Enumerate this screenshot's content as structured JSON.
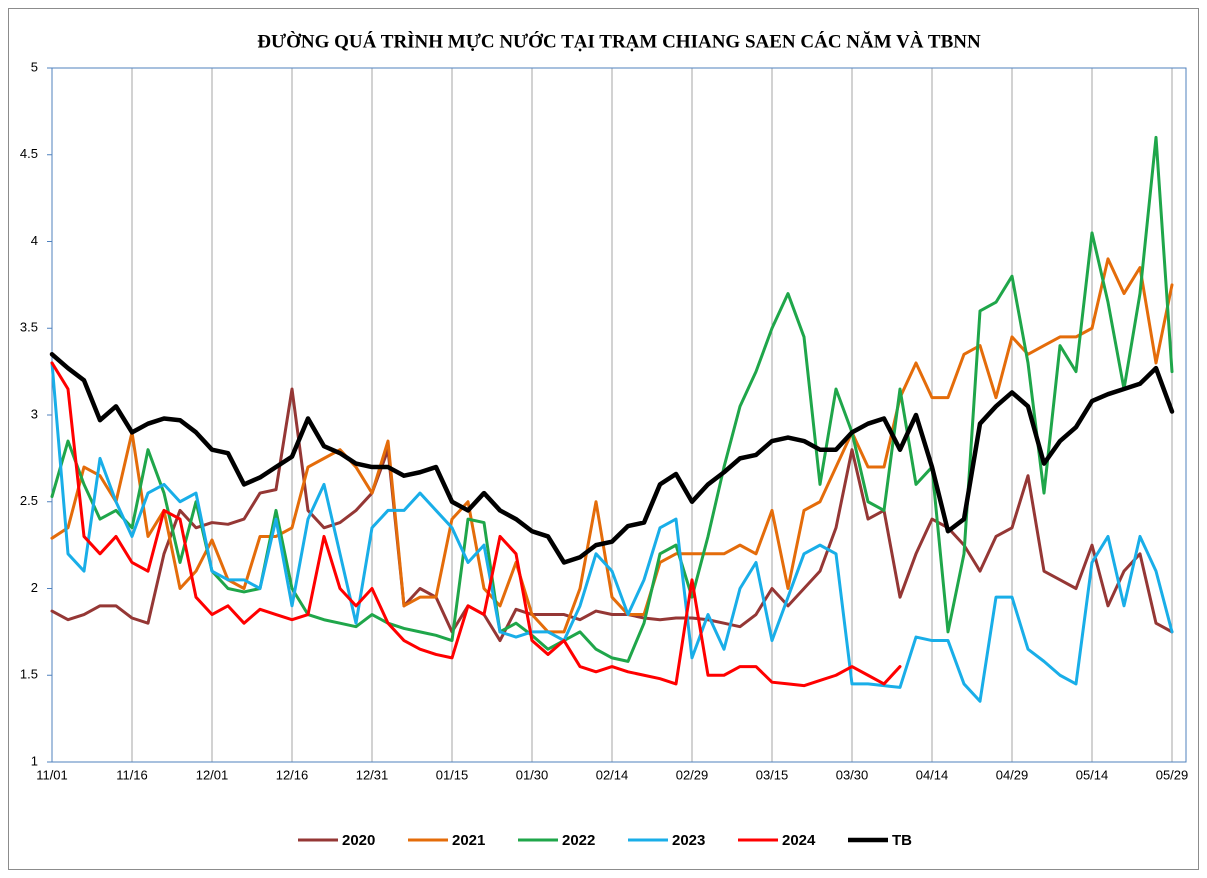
{
  "chart_data": {
    "type": "line",
    "title": "ĐƯỜNG QUÁ TRÌNH MỰC NƯỚC TẠI TRẠM CHIANG SAEN CÁC NĂM VÀ TBNN",
    "categories": [
      "11/01",
      null,
      null,
      null,
      null,
      "11/16",
      null,
      null,
      null,
      null,
      "12/01",
      null,
      null,
      null,
      null,
      "12/16",
      null,
      null,
      null,
      null,
      "12/31",
      null,
      null,
      null,
      null,
      "01/15",
      null,
      null,
      null,
      null,
      "01/30",
      null,
      null,
      null,
      null,
      "02/14",
      null,
      null,
      null,
      null,
      "02/29",
      null,
      null,
      null,
      null,
      "03/15",
      null,
      null,
      null,
      null,
      "03/30",
      null,
      null,
      null,
      null,
      "04/14",
      null,
      null,
      null,
      null,
      "04/29",
      null,
      null,
      null,
      null,
      "05/14",
      null,
      null,
      null,
      null,
      "05/29"
    ],
    "ylim": [
      1,
      5
    ],
    "yticks": [
      1,
      1.5,
      2,
      2.5,
      3,
      3.5,
      4,
      4.5,
      5
    ],
    "grid": true,
    "legend": "bottom",
    "series": [
      {
        "name": "2020",
        "color": "#953735",
        "width": 3,
        "values": [
          1.87,
          1.82,
          1.85,
          1.9,
          1.9,
          1.83,
          1.8,
          2.2,
          2.45,
          2.35,
          2.38,
          2.37,
          2.4,
          2.55,
          2.57,
          3.15,
          2.45,
          2.35,
          2.38,
          2.45,
          2.55,
          2.8,
          1.9,
          2.0,
          1.95,
          1.75,
          1.9,
          1.85,
          1.7,
          1.88,
          1.85,
          1.85,
          1.85,
          1.82,
          1.87,
          1.85,
          1.85,
          1.83,
          1.82,
          1.83,
          1.83,
          1.82,
          1.8,
          1.78,
          1.85,
          2.0,
          1.9,
          2.0,
          2.1,
          2.35,
          2.8,
          2.4,
          2.45,
          1.95,
          2.2,
          2.4,
          2.35,
          2.25,
          2.1,
          2.3,
          2.35,
          2.65,
          2.1,
          2.05,
          2.0,
          2.25,
          1.9,
          2.1,
          2.2,
          1.8,
          1.75
        ]
      },
      {
        "name": "2021",
        "color": "#e46c0a",
        "width": 3,
        "values": [
          2.29,
          2.35,
          2.7,
          2.65,
          2.5,
          2.9,
          2.3,
          2.45,
          2.0,
          2.1,
          2.28,
          2.05,
          2.0,
          2.3,
          2.3,
          2.35,
          2.7,
          2.75,
          2.8,
          2.7,
          2.55,
          2.85,
          1.9,
          1.95,
          1.95,
          2.4,
          2.5,
          2.0,
          1.9,
          2.15,
          1.85,
          1.75,
          1.75,
          2.0,
          2.5,
          1.95,
          1.85,
          1.85,
          2.15,
          2.2,
          2.2,
          2.2,
          2.2,
          2.25,
          2.2,
          2.45,
          2.0,
          2.45,
          2.5,
          2.7,
          2.9,
          2.7,
          2.7,
          3.1,
          3.3,
          3.1,
          3.1,
          3.35,
          3.4,
          3.1,
          3.45,
          3.35,
          3.4,
          3.45,
          3.45,
          3.5,
          3.9,
          3.7,
          3.85,
          3.3,
          3.75
        ]
      },
      {
        "name": "2022",
        "color": "#1fa64a",
        "width": 3,
        "values": [
          2.53,
          2.85,
          2.6,
          2.4,
          2.45,
          2.35,
          2.8,
          2.55,
          2.15,
          2.5,
          2.1,
          2.0,
          1.98,
          2.0,
          2.45,
          2.0,
          1.85,
          1.82,
          1.8,
          1.78,
          1.85,
          1.8,
          1.77,
          1.75,
          1.73,
          1.7,
          2.4,
          2.38,
          1.75,
          1.8,
          1.73,
          1.65,
          1.7,
          1.75,
          1.65,
          1.6,
          1.58,
          1.8,
          2.2,
          2.25,
          1.95,
          2.3,
          2.7,
          3.05,
          3.25,
          3.5,
          3.7,
          3.45,
          2.6,
          3.15,
          2.9,
          2.5,
          2.45,
          3.15,
          2.6,
          2.7,
          1.75,
          2.2,
          3.6,
          3.65,
          3.8,
          3.3,
          2.55,
          3.4,
          3.25,
          4.05,
          3.65,
          3.15,
          3.7,
          4.6,
          3.25
        ]
      },
      {
        "name": "2023",
        "color": "#19aee8",
        "width": 3,
        "values": [
          3.3,
          2.2,
          2.1,
          2.75,
          2.5,
          2.3,
          2.55,
          2.6,
          2.5,
          2.55,
          2.1,
          2.05,
          2.05,
          2.0,
          2.4,
          1.9,
          2.4,
          2.6,
          2.2,
          1.8,
          2.35,
          2.45,
          2.45,
          2.55,
          2.45,
          2.35,
          2.15,
          2.25,
          1.75,
          1.72,
          1.75,
          1.75,
          1.7,
          1.9,
          2.2,
          2.1,
          1.85,
          2.05,
          2.35,
          2.4,
          1.6,
          1.85,
          1.65,
          2.0,
          2.15,
          1.7,
          1.95,
          2.2,
          2.25,
          2.2,
          1.45,
          1.45,
          1.44,
          1.43,
          1.72,
          1.7,
          1.7,
          1.45,
          1.35,
          1.95,
          1.95,
          1.65,
          1.58,
          1.5,
          1.45,
          2.15,
          2.3,
          1.9,
          2.3,
          2.1,
          1.75
        ]
      },
      {
        "name": "2024",
        "color": "#ff0000",
        "width": 3,
        "values": [
          3.3,
          3.15,
          2.3,
          2.2,
          2.3,
          2.15,
          2.1,
          2.45,
          2.4,
          1.95,
          1.85,
          1.9,
          1.8,
          1.88,
          1.85,
          1.82,
          1.85,
          2.3,
          2.0,
          1.9,
          2.0,
          1.8,
          1.7,
          1.65,
          1.62,
          1.6,
          1.9,
          1.85,
          2.3,
          2.2,
          1.7,
          1.62,
          1.7,
          1.55,
          1.52,
          1.55,
          1.52,
          1.5,
          1.48,
          1.45,
          2.05,
          1.5,
          1.5,
          1.55,
          1.55,
          1.46,
          1.45,
          1.44,
          1.47,
          1.5,
          1.55,
          1.5,
          1.45,
          1.55,
          null,
          null,
          null,
          null,
          null,
          null,
          null,
          null,
          null,
          null,
          null,
          null,
          null,
          null,
          null,
          null,
          null
        ]
      },
      {
        "name": "TB",
        "color": "#000000",
        "width": 4.5,
        "values": [
          3.35,
          3.27,
          3.2,
          2.97,
          3.05,
          2.9,
          2.95,
          2.98,
          2.97,
          2.9,
          2.8,
          2.78,
          2.6,
          2.64,
          2.7,
          2.76,
          2.98,
          2.82,
          2.78,
          2.72,
          2.7,
          2.7,
          2.65,
          2.67,
          2.7,
          2.5,
          2.45,
          2.55,
          2.45,
          2.4,
          2.33,
          2.3,
          2.15,
          2.18,
          2.25,
          2.27,
          2.36,
          2.38,
          2.6,
          2.66,
          2.5,
          2.6,
          2.67,
          2.75,
          2.77,
          2.85,
          2.87,
          2.85,
          2.8,
          2.8,
          2.9,
          2.95,
          2.98,
          2.8,
          3.0,
          2.7,
          2.33,
          2.4,
          2.95,
          3.05,
          3.13,
          3.05,
          2.72,
          2.85,
          2.93,
          3.08,
          3.12,
          3.15,
          3.18,
          3.27,
          3.02
        ]
      }
    ]
  }
}
